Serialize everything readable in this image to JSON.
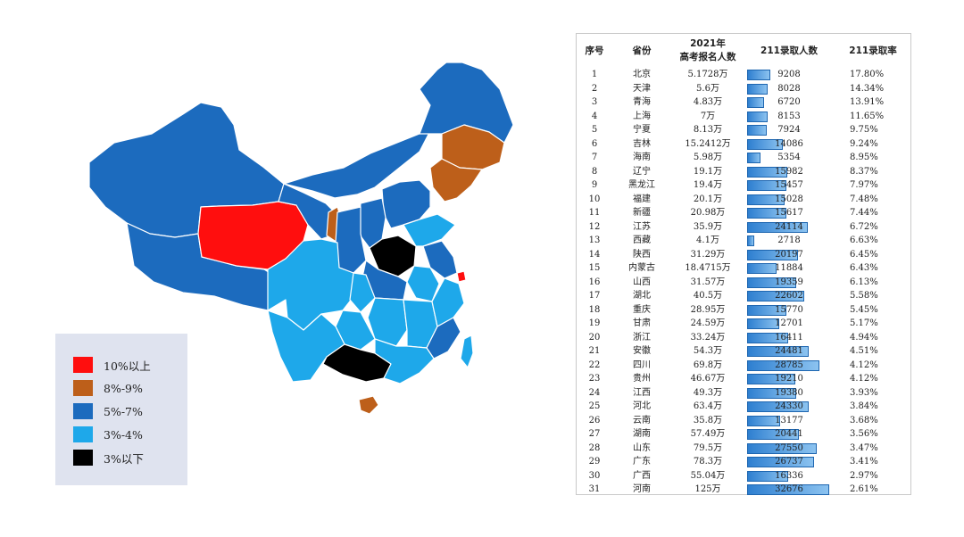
{
  "legend": {
    "items": [
      {
        "label": "10%以上",
        "color": "#ff0e0e"
      },
      {
        "label": "8%-9%",
        "color": "#bd5f1a"
      },
      {
        "label": "5%-7%",
        "color": "#1c6bbe"
      },
      {
        "label": "3%-4%",
        "color": "#1ea8ea"
      },
      {
        "label": "3%以下",
        "color": "#000000"
      }
    ]
  },
  "colors": {
    "high": "#ff0e0e",
    "mid_high": "#bd5f1a",
    "mid": "#1c6bbe",
    "low": "#1ea8ea",
    "lowest": "#000000",
    "border": "#ffffff",
    "bar": "#3a8ad8"
  },
  "chart_data": {
    "type": "table",
    "columns": [
      "序号",
      "省份",
      "2021年\n高考报名人数",
      "211录取人数",
      "211录取率"
    ],
    "bar_column": "211录取人数",
    "bar_max": 32676,
    "rows": [
      {
        "rank": "1",
        "province": "北京",
        "applicants": "5.1728万",
        "admitted": 9208,
        "rate": "17.80%"
      },
      {
        "rank": "2",
        "province": "天津",
        "applicants": "5.6万",
        "admitted": 8028,
        "rate": "14.34%"
      },
      {
        "rank": "3",
        "province": "青海",
        "applicants": "4.83万",
        "admitted": 6720,
        "rate": "13.91%"
      },
      {
        "rank": "4",
        "province": "上海",
        "applicants": "7万",
        "admitted": 8153,
        "rate": "11.65%"
      },
      {
        "rank": "5",
        "province": "宁夏",
        "applicants": "8.13万",
        "admitted": 7924,
        "rate": "9.75%"
      },
      {
        "rank": "6",
        "province": "吉林",
        "applicants": "15.2412万",
        "admitted": 14086,
        "rate": "9.24%"
      },
      {
        "rank": "7",
        "province": "海南",
        "applicants": "5.98万",
        "admitted": 5354,
        "rate": "8.95%"
      },
      {
        "rank": "8",
        "province": "辽宁",
        "applicants": "19.1万",
        "admitted": 15982,
        "rate": "8.37%"
      },
      {
        "rank": "9",
        "province": "黑龙江",
        "applicants": "19.4万",
        "admitted": 15457,
        "rate": "7.97%"
      },
      {
        "rank": "10",
        "province": "福建",
        "applicants": "20.1万",
        "admitted": 15028,
        "rate": "7.48%"
      },
      {
        "rank": "11",
        "province": "新疆",
        "applicants": "20.98万",
        "admitted": 15617,
        "rate": "7.44%"
      },
      {
        "rank": "12",
        "province": "江苏",
        "applicants": "35.9万",
        "admitted": 24114,
        "rate": "6.72%"
      },
      {
        "rank": "13",
        "province": "西藏",
        "applicants": "4.1万",
        "admitted": 2718,
        "rate": "6.63%"
      },
      {
        "rank": "14",
        "province": "陕西",
        "applicants": "31.29万",
        "admitted": 20197,
        "rate": "6.45%"
      },
      {
        "rank": "15",
        "province": "内蒙古",
        "applicants": "18.4715万",
        "admitted": 11884,
        "rate": "6.43%"
      },
      {
        "rank": "16",
        "province": "山西",
        "applicants": "31.57万",
        "admitted": 19359,
        "rate": "6.13%"
      },
      {
        "rank": "17",
        "province": "湖北",
        "applicants": "40.5万",
        "admitted": 22602,
        "rate": "5.58%"
      },
      {
        "rank": "18",
        "province": "重庆",
        "applicants": "28.95万",
        "admitted": 15770,
        "rate": "5.45%"
      },
      {
        "rank": "19",
        "province": "甘肃",
        "applicants": "24.59万",
        "admitted": 12701,
        "rate": "5.17%"
      },
      {
        "rank": "20",
        "province": "浙江",
        "applicants": "33.24万",
        "admitted": 16411,
        "rate": "4.94%"
      },
      {
        "rank": "21",
        "province": "安徽",
        "applicants": "54.3万",
        "admitted": 24481,
        "rate": "4.51%"
      },
      {
        "rank": "22",
        "province": "四川",
        "applicants": "69.8万",
        "admitted": 28785,
        "rate": "4.12%"
      },
      {
        "rank": "23",
        "province": "贵州",
        "applicants": "46.67万",
        "admitted": 19210,
        "rate": "4.12%"
      },
      {
        "rank": "24",
        "province": "江西",
        "applicants": "49.3万",
        "admitted": 19380,
        "rate": "3.93%"
      },
      {
        "rank": "25",
        "province": "河北",
        "applicants": "63.4万",
        "admitted": 24330,
        "rate": "3.84%"
      },
      {
        "rank": "26",
        "province": "云南",
        "applicants": "35.8万",
        "admitted": 13177,
        "rate": "3.68%"
      },
      {
        "rank": "27",
        "province": "湖南",
        "applicants": "57.49万",
        "admitted": 20441,
        "rate": "3.56%"
      },
      {
        "rank": "28",
        "province": "山东",
        "applicants": "79.5万",
        "admitted": 27550,
        "rate": "3.47%"
      },
      {
        "rank": "29",
        "province": "广东",
        "applicants": "78.3万",
        "admitted": 26737,
        "rate": "3.41%"
      },
      {
        "rank": "30",
        "province": "广西",
        "applicants": "55.04万",
        "admitted": 16336,
        "rate": "2.97%"
      },
      {
        "rank": "31",
        "province": "河南",
        "applicants": "125万",
        "admitted": 32676,
        "rate": "2.61%"
      }
    ]
  }
}
